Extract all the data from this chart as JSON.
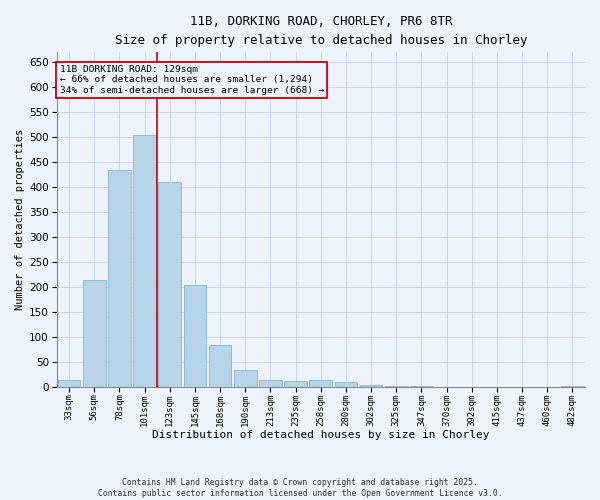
{
  "title_line1": "11B, DORKING ROAD, CHORLEY, PR6 8TR",
  "title_line2": "Size of property relative to detached houses in Chorley",
  "xlabel": "Distribution of detached houses by size in Chorley",
  "ylabel": "Number of detached properties",
  "footer_line1": "Contains HM Land Registry data © Crown copyright and database right 2025.",
  "footer_line2": "Contains public sector information licensed under the Open Government Licence v3.0.",
  "annotation_line1": "11B DORKING ROAD: 129sqm",
  "annotation_line2": "← 66% of detached houses are smaller (1,294)",
  "annotation_line3": "34% of semi-detached houses are larger (668) →",
  "bar_color": "#b8d4e8",
  "bar_edge_color": "#7aaac8",
  "vline_color": "#cc0000",
  "grid_color": "#c8d4e8",
  "background_color": "#eef2fa",
  "categories": [
    "33sqm",
    "56sqm",
    "78sqm",
    "101sqm",
    "123sqm",
    "145sqm",
    "168sqm",
    "190sqm",
    "213sqm",
    "235sqm",
    "258sqm",
    "280sqm",
    "302sqm",
    "325sqm",
    "347sqm",
    "370sqm",
    "392sqm",
    "415sqm",
    "437sqm",
    "460sqm",
    "482sqm"
  ],
  "values": [
    14,
    215,
    435,
    505,
    410,
    205,
    85,
    35,
    14,
    13,
    14,
    10,
    5,
    3,
    2,
    1,
    0,
    0,
    0,
    0,
    3
  ],
  "ylim": [
    0,
    670
  ],
  "yticks": [
    0,
    50,
    100,
    150,
    200,
    250,
    300,
    350,
    400,
    450,
    500,
    550,
    600,
    650
  ],
  "vline_x_index": 3.5,
  "fig_width": 6.0,
  "fig_height": 5.0,
  "dpi": 100
}
